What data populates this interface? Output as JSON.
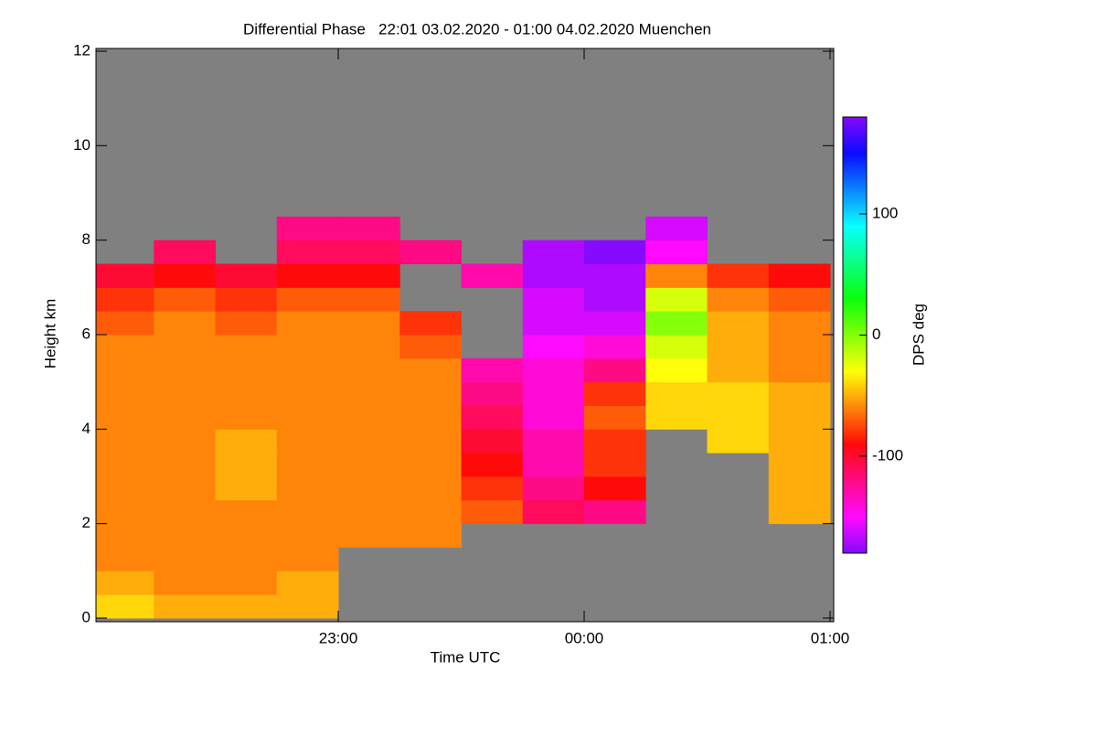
{
  "chart_data": {
    "type": "heatmap",
    "title": "Differential Phase   22:01 03.02.2020 - 01:00 04.02.2020 Muenchen",
    "x_label": "Time UTC",
    "y_label": "Height km",
    "xlim": [
      1,
      180
    ],
    "xticks": [
      {
        "value": 60,
        "label": "23:00"
      },
      {
        "value": 120,
        "label": "00:00"
      },
      {
        "value": 180,
        "label": "01:00"
      }
    ],
    "ylim": [
      0,
      12
    ],
    "yticks": [
      0,
      2,
      4,
      6,
      8,
      10,
      12
    ],
    "nodata_color": "#808080",
    "x_edges": [
      1,
      15,
      30,
      45,
      60,
      75,
      90,
      105,
      120,
      135,
      150,
      165,
      180
    ],
    "y_edges": [
      0,
      0.5,
      1,
      1.5,
      2,
      2.5,
      3,
      3.5,
      4,
      4.5,
      5,
      5.5,
      6,
      6.5,
      7,
      7.5,
      8,
      8.5,
      9,
      9.5,
      10,
      10.5,
      11,
      11.5,
      12
    ],
    "z": [
      [
        -40,
        -50,
        -50,
        -50,
        null,
        null,
        null,
        null,
        null,
        null,
        null,
        null
      ],
      [
        -50,
        -60,
        -60,
        -50,
        null,
        null,
        null,
        null,
        null,
        null,
        null,
        null
      ],
      [
        -60,
        -60,
        -60,
        -60,
        null,
        null,
        null,
        null,
        null,
        null,
        null,
        null
      ],
      [
        -60,
        -60,
        -60,
        -60,
        -60,
        -60,
        null,
        null,
        null,
        null,
        null,
        null
      ],
      [
        -60,
        -60,
        -60,
        -60,
        -60,
        -60,
        -70,
        -110,
        -120,
        null,
        null,
        -50
      ],
      [
        -60,
        -60,
        -50,
        -60,
        -60,
        -60,
        -80,
        -120,
        -90,
        null,
        null,
        -50
      ],
      [
        -60,
        -60,
        -50,
        -60,
        -60,
        -60,
        -90,
        -130,
        -80,
        null,
        null,
        -50
      ],
      [
        -60,
        -60,
        -50,
        -60,
        -60,
        -60,
        -100,
        -130,
        -80,
        null,
        -40,
        -50
      ],
      [
        -60,
        -60,
        -60,
        -60,
        -60,
        -60,
        -110,
        -140,
        -70,
        -40,
        -40,
        -50
      ],
      [
        -60,
        -60,
        -60,
        -60,
        -60,
        -60,
        -120,
        -140,
        -80,
        -40,
        -40,
        -50
      ],
      [
        -60,
        -60,
        -60,
        -60,
        -60,
        -60,
        -130,
        -140,
        -120,
        -30,
        -50,
        -60
      ],
      [
        -60,
        -60,
        -60,
        -60,
        -60,
        -70,
        null,
        -150,
        -140,
        -20,
        -50,
        -60
      ],
      [
        -70,
        -60,
        -70,
        -60,
        -60,
        -80,
        null,
        -160,
        -160,
        0,
        -50,
        -60
      ],
      [
        -80,
        -70,
        -80,
        -70,
        -70,
        null,
        null,
        -160,
        -170,
        -20,
        -60,
        -70
      ],
      [
        -100,
        -90,
        -100,
        -90,
        -90,
        null,
        -130,
        -170,
        -170,
        -60,
        -80,
        -90
      ],
      [
        null,
        -110,
        null,
        -110,
        -110,
        -120,
        null,
        -170,
        180,
        -150,
        null,
        null
      ],
      [
        null,
        null,
        null,
        -120,
        -120,
        null,
        null,
        null,
        null,
        -160,
        null,
        null
      ],
      [
        null,
        null,
        null,
        null,
        null,
        null,
        null,
        null,
        null,
        null,
        null,
        null
      ],
      [
        null,
        null,
        null,
        null,
        null,
        null,
        null,
        null,
        null,
        null,
        null,
        null
      ],
      [
        null,
        null,
        null,
        null,
        null,
        null,
        null,
        null,
        null,
        null,
        null,
        null
      ],
      [
        null,
        null,
        null,
        null,
        null,
        null,
        null,
        null,
        null,
        null,
        null,
        null
      ],
      [
        null,
        null,
        null,
        null,
        null,
        null,
        null,
        null,
        null,
        null,
        null,
        null
      ],
      [
        null,
        null,
        null,
        null,
        null,
        null,
        null,
        null,
        null,
        null,
        null,
        null
      ],
      [
        null,
        null,
        null,
        null,
        null,
        null,
        null,
        null,
        null,
        null,
        null,
        null
      ]
    ],
    "colorbar": {
      "label": "DPS deg",
      "lim": [
        -180,
        180
      ],
      "ticks": [
        -100,
        0,
        100
      ]
    }
  }
}
